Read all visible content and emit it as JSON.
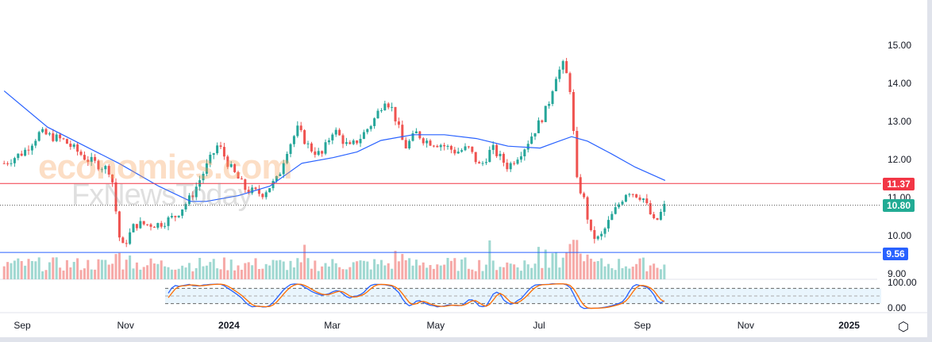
{
  "chart_data": {
    "type": "candlestick",
    "title": "",
    "watermarks": [
      "economies.com",
      "FxNewsToday"
    ],
    "y_axis": {
      "ticks": [
        "15.00",
        "14.00",
        "13.00",
        "12.00",
        "11.00",
        "10.00",
        "9.00"
      ],
      "range": [
        9.0,
        15.2
      ]
    },
    "x_axis": {
      "ticks": [
        "Sep",
        "Nov",
        "2024",
        "Mar",
        "May",
        "Jul",
        "Sep",
        "Nov",
        "2025"
      ],
      "tick_months": [
        0,
        2,
        4,
        6,
        8,
        10,
        12,
        14,
        16
      ],
      "unit": "months since Sep 2023"
    },
    "price_path": [
      [
        -0.35,
        11.9
      ],
      [
        0.03,
        12.2
      ],
      [
        0.34,
        12.7
      ],
      [
        0.8,
        12.5
      ],
      [
        1.26,
        12.0
      ],
      [
        1.72,
        11.7
      ],
      [
        1.87,
        10.0
      ],
      [
        1.95,
        9.7
      ],
      [
        2.18,
        10.3
      ],
      [
        2.64,
        10.3
      ],
      [
        2.95,
        10.5
      ],
      [
        3.26,
        11.0
      ],
      [
        3.56,
        11.8
      ],
      [
        3.79,
        12.4
      ],
      [
        4.02,
        11.8
      ],
      [
        4.33,
        11.2
      ],
      [
        4.64,
        11.1
      ],
      [
        4.95,
        11.5
      ],
      [
        5.1,
        12.2
      ],
      [
        5.33,
        12.8
      ],
      [
        5.56,
        12.3
      ],
      [
        5.79,
        12.1
      ],
      [
        6.02,
        12.8
      ],
      [
        6.33,
        12.3
      ],
      [
        6.56,
        12.6
      ],
      [
        6.79,
        13.0
      ],
      [
        7.02,
        13.6
      ],
      [
        7.17,
        13.3
      ],
      [
        7.4,
        12.3
      ],
      [
        7.63,
        12.7
      ],
      [
        7.79,
        12.5
      ],
      [
        8.1,
        12.4
      ],
      [
        8.4,
        12.2
      ],
      [
        8.63,
        12.3
      ],
      [
        8.86,
        11.8
      ],
      [
        9.09,
        12.3
      ],
      [
        9.4,
        11.8
      ],
      [
        9.71,
        12.3
      ],
      [
        10.02,
        13.0
      ],
      [
        10.17,
        13.4
      ],
      [
        10.32,
        14.2
      ],
      [
        10.48,
        14.5
      ],
      [
        10.63,
        13.7
      ],
      [
        10.71,
        11.5
      ],
      [
        10.86,
        11.0
      ],
      [
        11.01,
        10.0
      ],
      [
        11.17,
        9.9
      ],
      [
        11.4,
        10.5
      ],
      [
        11.71,
        11.2
      ],
      [
        12.01,
        11.0
      ],
      [
        12.24,
        10.3
      ],
      [
        12.44,
        10.8
      ]
    ],
    "moving_average": [
      [
        -0.35,
        13.8
      ],
      [
        0.49,
        12.85
      ],
      [
        1.87,
        11.9
      ],
      [
        2.64,
        11.3
      ],
      [
        3.26,
        10.9
      ],
      [
        3.56,
        10.9
      ],
      [
        4.18,
        11.05
      ],
      [
        4.79,
        11.3
      ],
      [
        5.41,
        11.9
      ],
      [
        6.02,
        12.05
      ],
      [
        6.48,
        12.2
      ],
      [
        6.94,
        12.5
      ],
      [
        7.56,
        12.65
      ],
      [
        8.17,
        12.65
      ],
      [
        8.79,
        12.55
      ],
      [
        9.4,
        12.35
      ],
      [
        10.02,
        12.3
      ],
      [
        10.32,
        12.45
      ],
      [
        10.63,
        12.6
      ],
      [
        10.94,
        12.48
      ],
      [
        11.4,
        12.15
      ],
      [
        11.86,
        11.8
      ],
      [
        12.44,
        11.45
      ]
    ],
    "price_lines": [
      {
        "label": "11.37",
        "value": 11.37,
        "color": "#f23645",
        "style": "solid"
      },
      {
        "label": "10.80",
        "value": 10.8,
        "color": "#089981",
        "style": "dotted"
      },
      {
        "label": "9.56",
        "value": 9.56,
        "color": "#2962ff",
        "style": "solid"
      }
    ],
    "oscillator": {
      "type": "stochastic",
      "ticks": [
        "100.00",
        "0.00"
      ],
      "upper_band": 80,
      "lower_band": 20,
      "k_color": "#2962ff",
      "d_color": "#ff6d00"
    },
    "colors": {
      "up": "#26a69a",
      "down": "#ef5350",
      "ma": "#2962ff"
    }
  },
  "settings_icon": "gear-icon"
}
